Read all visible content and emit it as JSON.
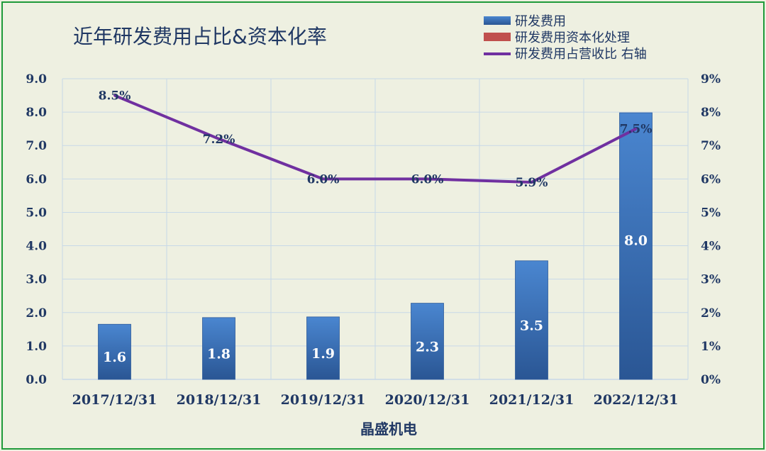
{
  "chart_data": {
    "type": "bar",
    "title": "近年研发费用占比&资本化率",
    "xlabel": "晶盛机电",
    "ylabel": "",
    "ylabel_right": "",
    "categories": [
      "2017/12/31",
      "2018/12/31",
      "2019/12/31",
      "2020/12/31",
      "2021/12/31",
      "2022/12/31"
    ],
    "ylim": [
      0,
      9
    ],
    "yticks": [
      "0.0",
      "1.0",
      "2.0",
      "3.0",
      "4.0",
      "5.0",
      "6.0",
      "7.0",
      "8.0",
      "9.0"
    ],
    "y2lim": [
      0,
      9
    ],
    "y2ticks": [
      "0%",
      "1%",
      "2%",
      "3%",
      "4%",
      "5%",
      "6%",
      "7%",
      "8%",
      "9%"
    ],
    "grid": true,
    "legend_position": "top-right",
    "series": [
      {
        "name": "研发费用",
        "type": "bar",
        "axis": "left",
        "color": "#3a6fb8",
        "values": [
          1.65,
          1.85,
          1.87,
          2.28,
          3.55,
          7.98
        ],
        "labels": [
          "1.6",
          "1.8",
          "1.9",
          "2.3",
          "3.5",
          "8.0"
        ]
      },
      {
        "name": "研发费用资本化处理",
        "type": "bar",
        "axis": "left",
        "color": "#c0504d",
        "values": [
          0,
          0,
          0,
          0,
          0,
          0
        ],
        "labels": []
      },
      {
        "name": "研发费用占营收比 右轴",
        "type": "line",
        "axis": "right",
        "color": "#7030a0",
        "values": [
          8.5,
          7.2,
          6.0,
          6.0,
          5.9,
          7.5
        ],
        "labels": [
          "8.5%",
          "7.2%",
          "6.0%",
          "6.0%",
          "5.9%",
          "7.5%"
        ]
      }
    ]
  }
}
